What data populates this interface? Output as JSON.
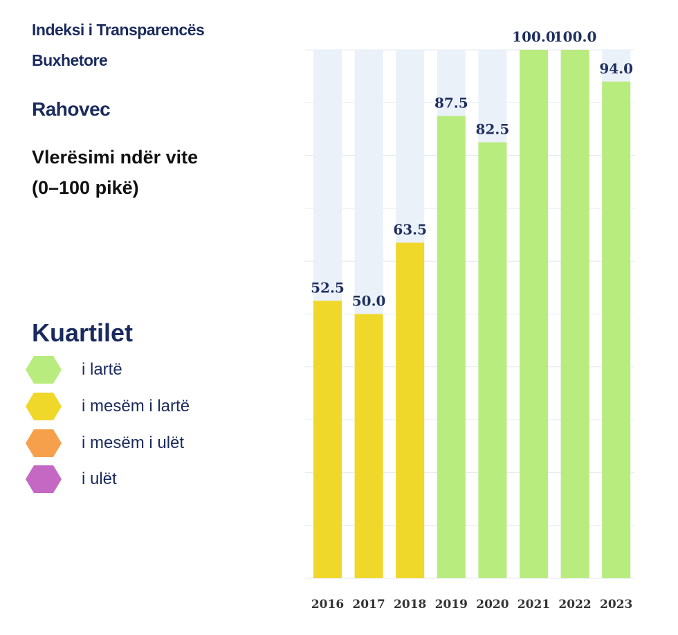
{
  "header": {
    "line1": "Indeksi i Transparencës",
    "line2": "Buxhetore",
    "municipality": "Rahovec",
    "subtitle_line1": "Vlerësimi ndër vite",
    "subtitle_line2": "(0–100 pikë)"
  },
  "legend": {
    "title": "Kuartilet",
    "items": [
      {
        "label": "i lartë",
        "color": "#b9ec7e"
      },
      {
        "label": "i mesëm i lartë",
        "color": "#f0d82a"
      },
      {
        "label": "i mesëm i ulët",
        "color": "#f7a04b"
      },
      {
        "label": "i ulët",
        "color": "#c468c4"
      }
    ]
  },
  "chart_data": {
    "type": "bar",
    "categories": [
      "2016",
      "2017",
      "2018",
      "2019",
      "2020",
      "2021",
      "2022",
      "2023"
    ],
    "values": [
      52.5,
      50.0,
      63.5,
      87.5,
      82.5,
      100.0,
      100.0,
      94.0
    ],
    "value_labels": [
      "52.5",
      "50.0",
      "63.5",
      "87.5",
      "82.5",
      "100.0",
      "100.0",
      "94.0"
    ],
    "quartile": [
      "i mesëm i lartë",
      "i mesëm i lartë",
      "i mesëm i lartë",
      "i lartë",
      "i lartë",
      "i lartë",
      "i lartë",
      "i lartë"
    ],
    "bar_colors": [
      "#f0d82a",
      "#f0d82a",
      "#f0d82a",
      "#b9ec7e",
      "#b9ec7e",
      "#b9ec7e",
      "#b9ec7e",
      "#b9ec7e"
    ],
    "background_bar_color": "#ebf1f9",
    "gridline_color": "#e3e8f0",
    "ylim": [
      0,
      100
    ],
    "grid": true
  }
}
